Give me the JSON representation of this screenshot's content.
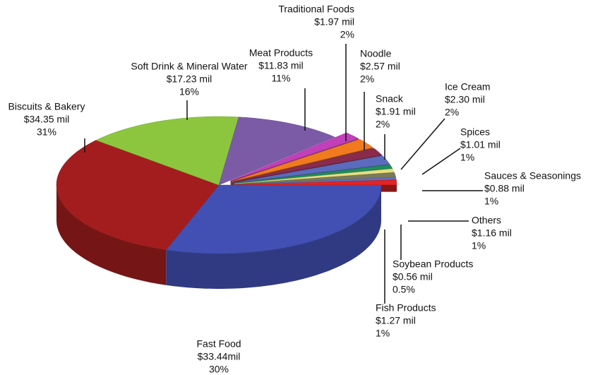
{
  "chart_data": {
    "type": "pie",
    "categories": [
      "Fast Food",
      "Biscuits & Bakery",
      "Soft Drink & Mineral Water",
      "Meat Products",
      "Traditional Foods",
      "Noodle",
      "Snack",
      "Ice Cream",
      "Spices",
      "Sauces & Seasonings",
      "Others",
      "Soybean Products",
      "Fish Products"
    ],
    "values": [
      33.44,
      34.35,
      17.23,
      11.83,
      1.97,
      2.57,
      1.91,
      2.3,
      1.01,
      0.88,
      1.16,
      0.56,
      1.27
    ],
    "value_labels": [
      "$33.44mil",
      "$34.35 mil",
      "$17.23 mil",
      "$11.83 mil",
      "$1.97 mil",
      "$2.57 mil",
      "$1.91 mil",
      "$2.30 mil",
      "$1.01 mil",
      "$0.88 mil",
      "$1.16 mil",
      "$0.56 mil",
      "$1.27 mil"
    ],
    "shares": [
      30,
      31,
      16,
      11,
      2,
      2,
      2,
      2,
      1,
      1,
      1,
      0.5,
      1
    ],
    "share_labels": [
      "30%",
      "31%",
      "16%",
      "11%",
      "2%",
      "2%",
      "2%",
      "2%",
      "1%",
      "1%",
      "1%",
      "0.5%",
      "1%"
    ],
    "colors": [
      "#4250b4",
      "#a31d1f",
      "#8cc63f",
      "#7b5aa6",
      "#c13fb8",
      "#f07a1e",
      "#8a2b4c",
      "#5b6bbd",
      "#1f8c5c",
      "#e6df80",
      "#7a7a5a",
      "#6272c4",
      "#e22424"
    ]
  }
}
